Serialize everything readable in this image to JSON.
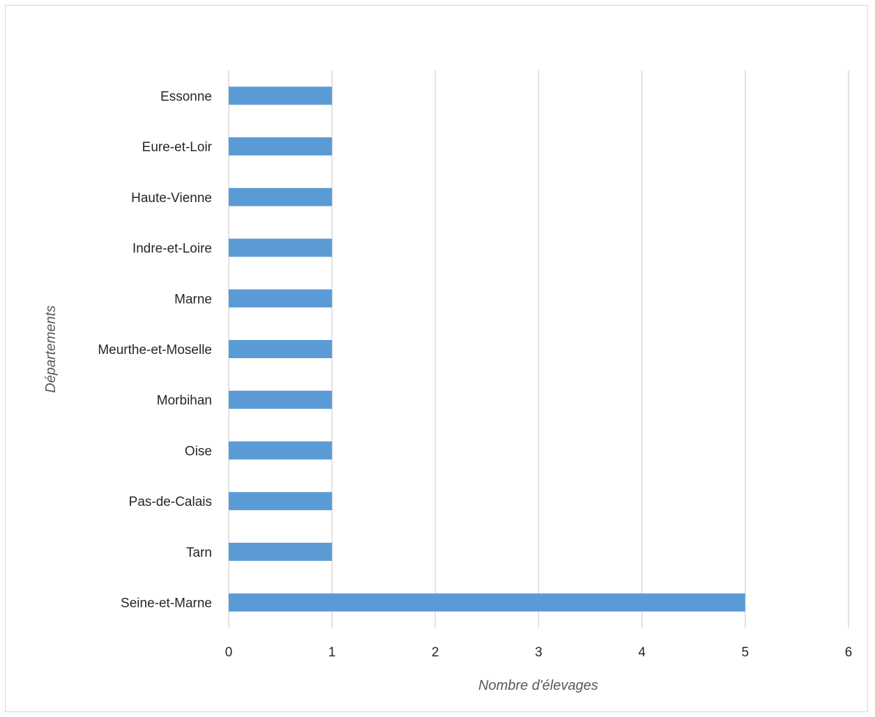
{
  "chart_data": {
    "type": "bar",
    "orientation": "horizontal",
    "title": "",
    "xlabel": "Nombre d'élevages",
    "ylabel": "Départements",
    "categories": [
      "Essonne",
      "Eure-et-Loir",
      "Haute-Vienne",
      "Indre-et-Loire",
      "Marne",
      "Meurthe-et-Moselle",
      "Morbihan",
      "Oise",
      "Pas-de-Calais",
      "Tarn",
      "Seine-et-Marne"
    ],
    "values": [
      1,
      1,
      1,
      1,
      1,
      1,
      1,
      1,
      1,
      1,
      5
    ],
    "xlim": [
      0,
      6
    ],
    "xticks": [
      "0",
      "1",
      "2",
      "3",
      "4",
      "5",
      "6"
    ],
    "grid": true,
    "legend": "none",
    "bar_color": "#5b9bd5"
  }
}
